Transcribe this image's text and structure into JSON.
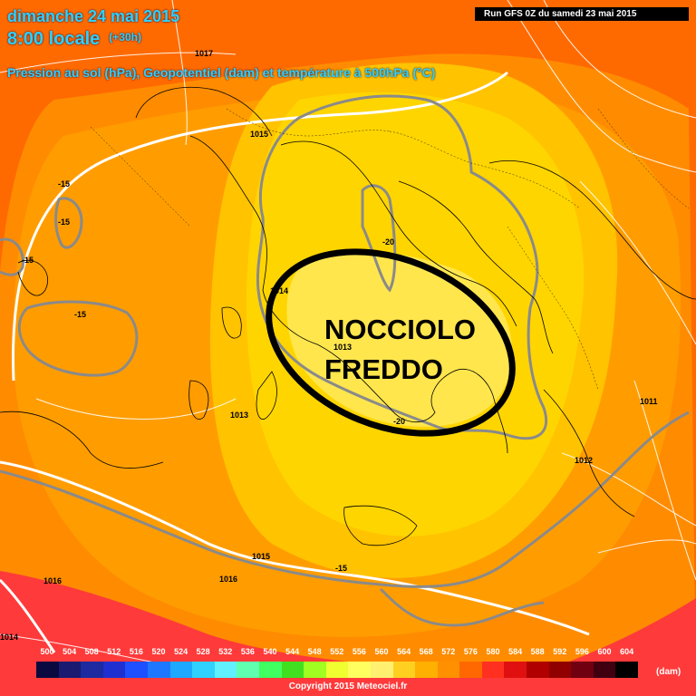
{
  "header": {
    "date_line": "dimanche 24 mai 2015",
    "time_line": "8:00 locale",
    "offset": "(+30h)",
    "parameters": "Pression au sol (hPa), Geopotentiel (dam) et température à 500hPa (°C)",
    "run_info": "Run GFS 0Z du samedi 23 mai 2015"
  },
  "annotation": {
    "line1": "NOCCIOLO",
    "line2": "FREDDO"
  },
  "pressure_labels": [
    "1017",
    "1015",
    "1014",
    "1013",
    "1013",
    "1011",
    "1012",
    "1015",
    "1016",
    "1016",
    "1014"
  ],
  "temperature_labels": [
    "-15",
    "-15",
    "-15",
    "-15",
    "-20",
    "-20",
    "-15"
  ],
  "scale": {
    "values": [
      "500",
      "504",
      "508",
      "512",
      "516",
      "520",
      "524",
      "528",
      "532",
      "536",
      "540",
      "544",
      "548",
      "552",
      "556",
      "560",
      "564",
      "568",
      "572",
      "576",
      "580",
      "584",
      "588",
      "592",
      "596",
      "600",
      "604"
    ],
    "colors": [
      "#0a0a40",
      "#1a1a70",
      "#1d2aa0",
      "#2030d0",
      "#1e50ff",
      "#1e78ff",
      "#1ea8ff",
      "#30d0ff",
      "#60f0ff",
      "#60ffb0",
      "#40ff60",
      "#40e020",
      "#a0ff20",
      "#f0ff30",
      "#ffff60",
      "#fff070",
      "#ffd020",
      "#ffb000",
      "#ff9000",
      "#ff6800",
      "#ff3020",
      "#e01010",
      "#b00000",
      "#900000",
      "#700010",
      "#400010",
      "#000000"
    ],
    "unit": "(dam)"
  },
  "copyright": "Copyright 2015 Meteociel.fr",
  "colors": {
    "outer": "#ff6a00",
    "orange": "#ff9500",
    "yellow_dark": "#ffc800",
    "yellow_light": "#ffe840",
    "core": "#ffee55",
    "red": "#ff3838"
  }
}
